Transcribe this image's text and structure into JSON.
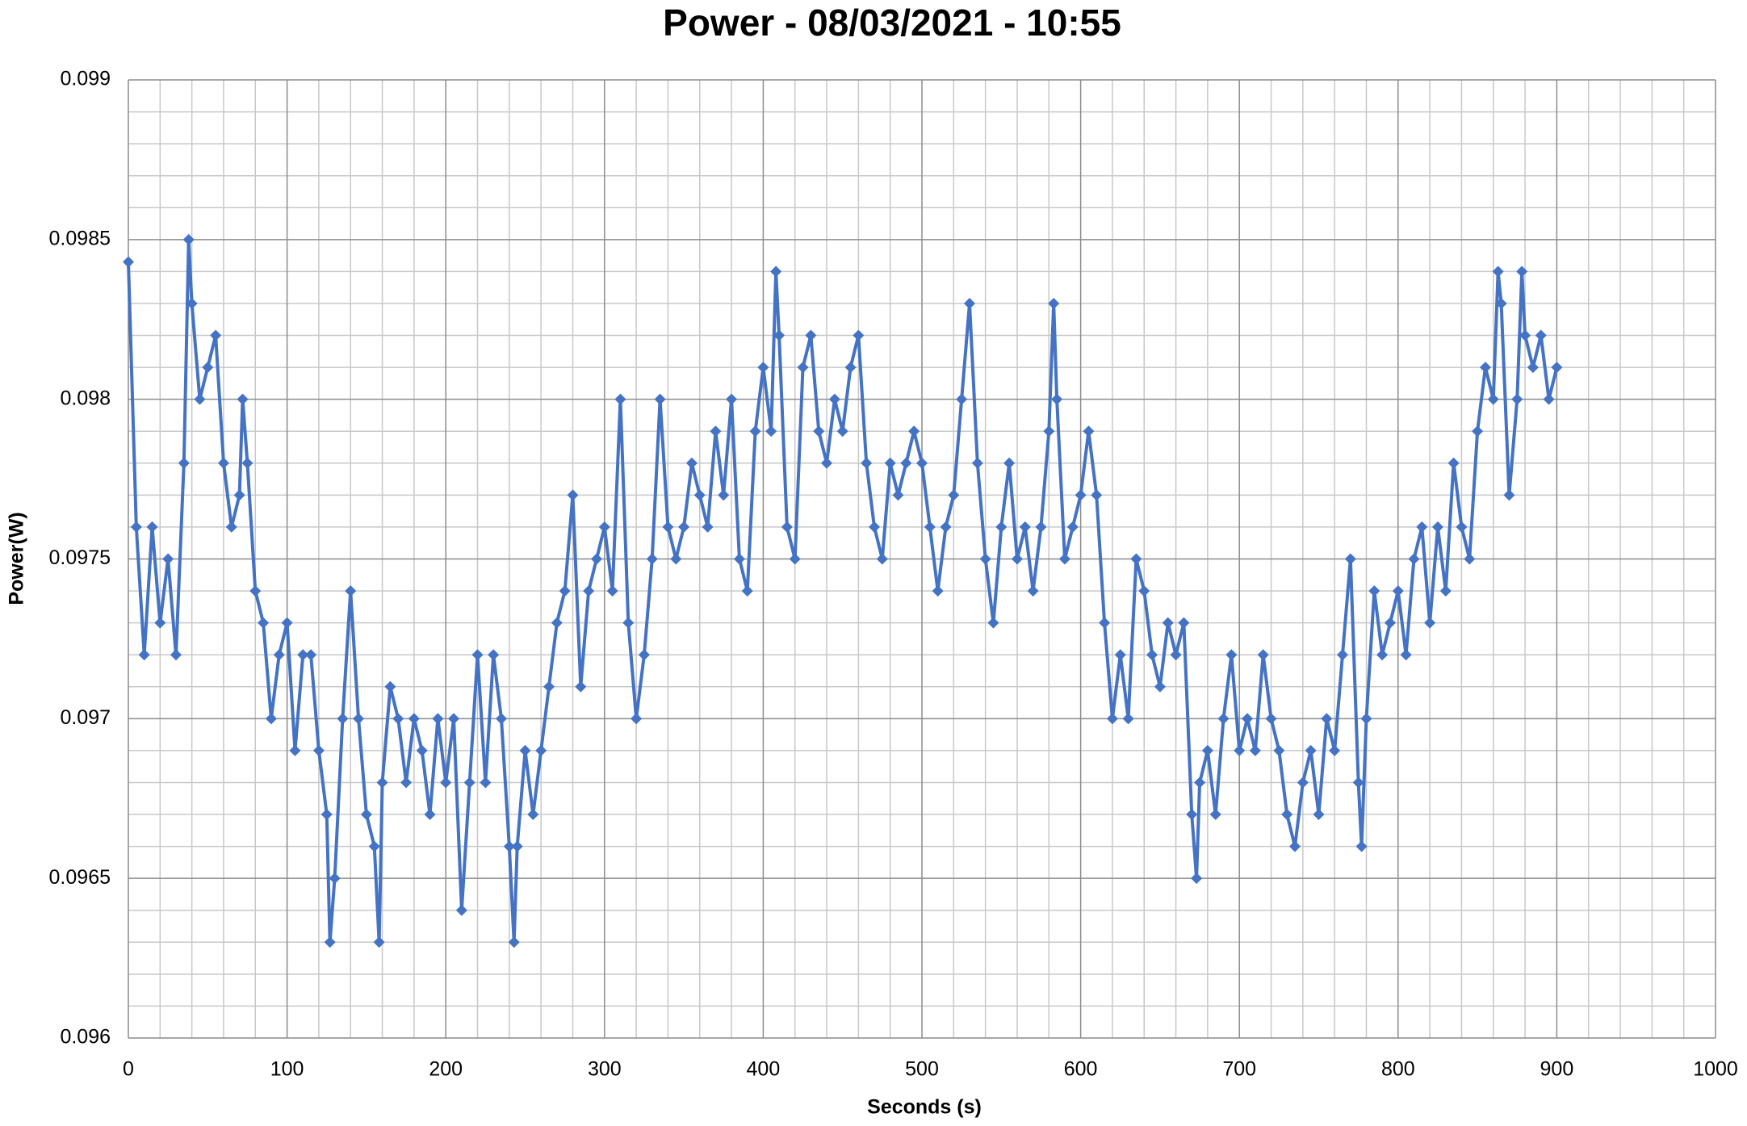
{
  "chart_data": {
    "type": "scatter-line",
    "title": "Power - 08/03/2021 - 10:55",
    "x_label": "Seconds (s)",
    "y_label": "Power(W)",
    "color": "#4472c4",
    "grid": true,
    "minor_divisions": 5,
    "xlim": [
      0,
      1000
    ],
    "xticks": [
      0,
      100,
      200,
      300,
      400,
      500,
      600,
      700,
      800,
      900,
      1000
    ],
    "ylim": [
      0.096,
      0.099
    ],
    "yticks": [
      0.096,
      0.0965,
      0.097,
      0.0975,
      0.098,
      0.0985,
      0.099
    ],
    "series": [
      {
        "name": "Power",
        "x": [
          0,
          5,
          10,
          15,
          20,
          25,
          30,
          35,
          38,
          40,
          45,
          50,
          55,
          60,
          65,
          70,
          72,
          75,
          80,
          85,
          90,
          95,
          100,
          105,
          110,
          115,
          120,
          125,
          127,
          130,
          135,
          140,
          145,
          150,
          155,
          158,
          160,
          165,
          170,
          175,
          180,
          185,
          190,
          195,
          200,
          205,
          210,
          215,
          220,
          225,
          230,
          235,
          240,
          243,
          245,
          250,
          255,
          260,
          265,
          270,
          275,
          280,
          285,
          290,
          295,
          300,
          305,
          310,
          315,
          320,
          325,
          330,
          335,
          340,
          345,
          350,
          355,
          360,
          365,
          370,
          375,
          380,
          385,
          390,
          395,
          400,
          405,
          408,
          410,
          415,
          420,
          425,
          430,
          435,
          440,
          445,
          450,
          455,
          460,
          465,
          470,
          475,
          480,
          485,
          490,
          495,
          500,
          505,
          510,
          515,
          520,
          525,
          530,
          535,
          540,
          545,
          550,
          555,
          560,
          565,
          570,
          575,
          580,
          583,
          585,
          590,
          595,
          600,
          605,
          610,
          615,
          620,
          625,
          630,
          635,
          640,
          645,
          650,
          655,
          660,
          665,
          670,
          673,
          675,
          680,
          685,
          690,
          695,
          700,
          705,
          710,
          715,
          720,
          725,
          730,
          735,
          740,
          745,
          750,
          755,
          760,
          765,
          770,
          775,
          777,
          780,
          785,
          790,
          795,
          800,
          805,
          810,
          815,
          820,
          825,
          830,
          835,
          840,
          845,
          850,
          855,
          860,
          863,
          865,
          870,
          875,
          878,
          880,
          885,
          890,
          895,
          900
        ],
        "values": [
          0.09843,
          0.0976,
          0.0972,
          0.0976,
          0.0973,
          0.0975,
          0.0972,
          0.0978,
          0.0985,
          0.0983,
          0.098,
          0.0981,
          0.0982,
          0.0978,
          0.0976,
          0.0977,
          0.098,
          0.0978,
          0.0974,
          0.0973,
          0.097,
          0.0972,
          0.0973,
          0.0969,
          0.0972,
          0.0972,
          0.0969,
          0.0967,
          0.0963,
          0.0965,
          0.097,
          0.0974,
          0.097,
          0.0967,
          0.0966,
          0.0963,
          0.0968,
          0.0971,
          0.097,
          0.0968,
          0.097,
          0.0969,
          0.0967,
          0.097,
          0.0968,
          0.097,
          0.0964,
          0.0968,
          0.0972,
          0.0968,
          0.0972,
          0.097,
          0.0966,
          0.0963,
          0.0966,
          0.0969,
          0.0967,
          0.0969,
          0.0971,
          0.0973,
          0.0974,
          0.0977,
          0.0971,
          0.0974,
          0.0975,
          0.0976,
          0.0974,
          0.098,
          0.0973,
          0.097,
          0.0972,
          0.0975,
          0.098,
          0.0976,
          0.0975,
          0.0976,
          0.0978,
          0.0977,
          0.0976,
          0.0979,
          0.0977,
          0.098,
          0.0975,
          0.0974,
          0.0979,
          0.0981,
          0.0979,
          0.0984,
          0.0982,
          0.0976,
          0.0975,
          0.0981,
          0.0982,
          0.0979,
          0.0978,
          0.098,
          0.0979,
          0.0981,
          0.0982,
          0.0978,
          0.0976,
          0.0975,
          0.0978,
          0.0977,
          0.0978,
          0.0979,
          0.0978,
          0.0976,
          0.0974,
          0.0976,
          0.0977,
          0.098,
          0.0983,
          0.0978,
          0.0975,
          0.0973,
          0.0976,
          0.0978,
          0.0975,
          0.0976,
          0.0974,
          0.0976,
          0.0979,
          0.0983,
          0.098,
          0.0975,
          0.0976,
          0.0977,
          0.0979,
          0.0977,
          0.0973,
          0.097,
          0.0972,
          0.097,
          0.0975,
          0.0974,
          0.0972,
          0.0971,
          0.0973,
          0.0972,
          0.0973,
          0.0967,
          0.0965,
          0.0968,
          0.0969,
          0.0967,
          0.097,
          0.0972,
          0.0969,
          0.097,
          0.0969,
          0.0972,
          0.097,
          0.0969,
          0.0967,
          0.0966,
          0.0968,
          0.0969,
          0.0967,
          0.097,
          0.0969,
          0.0972,
          0.0975,
          0.0968,
          0.0966,
          0.097,
          0.0974,
          0.0972,
          0.0973,
          0.0974,
          0.0972,
          0.0975,
          0.0976,
          0.0973,
          0.0976,
          0.0974,
          0.0978,
          0.0976,
          0.0975,
          0.0979,
          0.0981,
          0.098,
          0.0984,
          0.0983,
          0.0977,
          0.098,
          0.0984,
          0.0982,
          0.0981,
          0.0982,
          0.098,
          0.0981
        ]
      }
    ]
  }
}
